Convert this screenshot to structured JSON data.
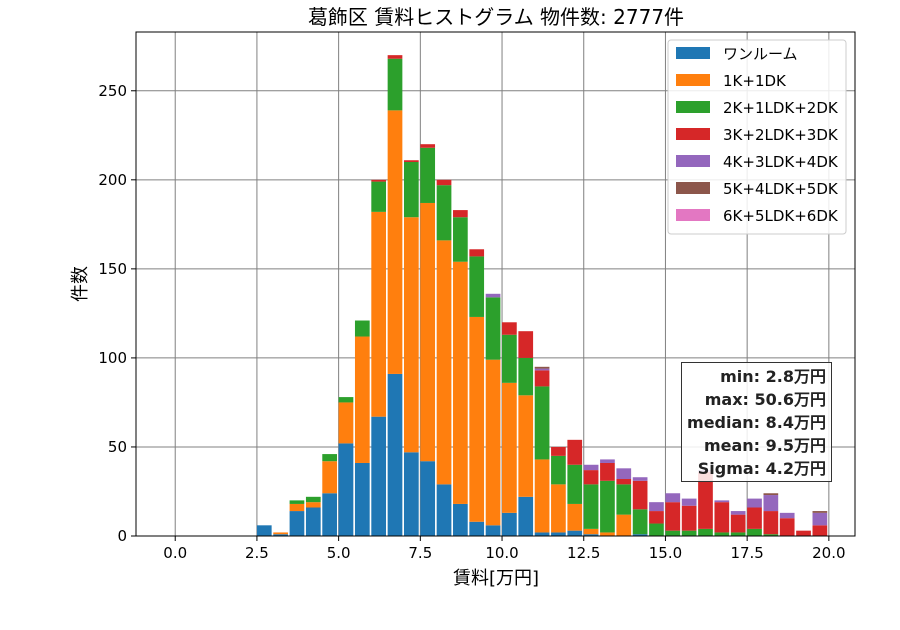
{
  "chart_data": {
    "type": "bar",
    "stacked": true,
    "title": "葛飾区 賃料ヒストグラム 物件数: 2777件",
    "xlabel": "賃料[万円]",
    "ylabel": "件数",
    "xlim": [
      -1.2,
      20.8
    ],
    "ylim": [
      0,
      283
    ],
    "xticks": [
      "0.0",
      "2.5",
      "5.0",
      "7.5",
      "10.0",
      "12.5",
      "15.0",
      "17.5",
      "20.0"
    ],
    "yticks": [
      "0",
      "50",
      "100",
      "150",
      "200",
      "250"
    ],
    "grid": true,
    "legend_position": "top-right",
    "bin_width": 0.5,
    "bin_starts": [
      2.5,
      3.0,
      3.5,
      4.0,
      4.5,
      5.0,
      5.5,
      6.0,
      6.5,
      7.0,
      7.5,
      8.0,
      8.5,
      9.0,
      9.5,
      10.0,
      10.5,
      11.0,
      11.5,
      12.0,
      12.5,
      13.0,
      13.5,
      14.0,
      14.5,
      15.0,
      15.5,
      16.0,
      16.5,
      17.0,
      17.5,
      18.0,
      18.5,
      19.0,
      19.5
    ],
    "series": [
      {
        "name": "ワンルーム",
        "color": "#1f77b4",
        "values": [
          6,
          1,
          14,
          16,
          24,
          52,
          41,
          67,
          91,
          47,
          42,
          29,
          18,
          8,
          6,
          13,
          22,
          2,
          2,
          3,
          1,
          0,
          0,
          1,
          0,
          0,
          0,
          0,
          0,
          0,
          0,
          0,
          0,
          0,
          0
        ]
      },
      {
        "name": "1K+1DK",
        "color": "#ff7f0e",
        "values": [
          0,
          1,
          4,
          3,
          18,
          23,
          71,
          115,
          148,
          132,
          145,
          137,
          136,
          115,
          93,
          73,
          57,
          41,
          27,
          15,
          3,
          2,
          12,
          0,
          0,
          0,
          0,
          0,
          0,
          0,
          0,
          0,
          0,
          0,
          0
        ]
      },
      {
        "name": "2K+1LDK+2DK",
        "color": "#2ca02c",
        "values": [
          0,
          0,
          2,
          3,
          4,
          3,
          9,
          17,
          29,
          31,
          31,
          31,
          25,
          34,
          35,
          27,
          21,
          41,
          16,
          22,
          25,
          29,
          17,
          14,
          7,
          3,
          3,
          4,
          2,
          2,
          4,
          1,
          0,
          0,
          0
        ]
      },
      {
        "name": "3K+2LDK+3DK",
        "color": "#d62728",
        "values": [
          0,
          0,
          0,
          0,
          0,
          0,
          0,
          1,
          2,
          1,
          2,
          3,
          4,
          4,
          0,
          7,
          15,
          9,
          5,
          14,
          8,
          10,
          3,
          16,
          7,
          16,
          14,
          32,
          17,
          10,
          12,
          13,
          10,
          3,
          6
        ]
      },
      {
        "name": "4K+3LDK+4DK",
        "color": "#9467bd",
        "values": [
          0,
          0,
          0,
          0,
          0,
          0,
          0,
          0,
          0,
          0,
          0,
          0,
          0,
          0,
          2,
          0,
          0,
          1,
          0,
          0,
          3,
          2,
          6,
          2,
          5,
          5,
          4,
          1,
          1,
          2,
          5,
          9,
          3,
          0,
          7
        ]
      },
      {
        "name": "5K+4LDK+5DK",
        "color": "#8c564b",
        "values": [
          0,
          0,
          0,
          0,
          0,
          0,
          0,
          0,
          0,
          0,
          0,
          0,
          0,
          0,
          0,
          0,
          0,
          1,
          0,
          0,
          0,
          0,
          0,
          0,
          0,
          0,
          0,
          0,
          0,
          0,
          0,
          1,
          0,
          0,
          1
        ]
      },
      {
        "name": "6K+5LDK+6DK",
        "color": "#e377c2",
        "values": [
          0,
          0,
          0,
          0,
          0,
          0,
          0,
          0,
          0,
          0,
          0,
          0,
          0,
          0,
          0,
          0,
          0,
          0,
          0,
          0,
          0,
          0,
          0,
          0,
          0,
          0,
          0,
          0,
          0,
          0,
          0,
          0,
          0,
          0,
          0
        ]
      }
    ],
    "stats": {
      "min": "min: 2.8万円",
      "max": "max: 50.6万円",
      "median": "median: 8.4万円",
      "mean": "mean: 9.5万円",
      "sigma": "Sigma: 4.2万円"
    }
  }
}
